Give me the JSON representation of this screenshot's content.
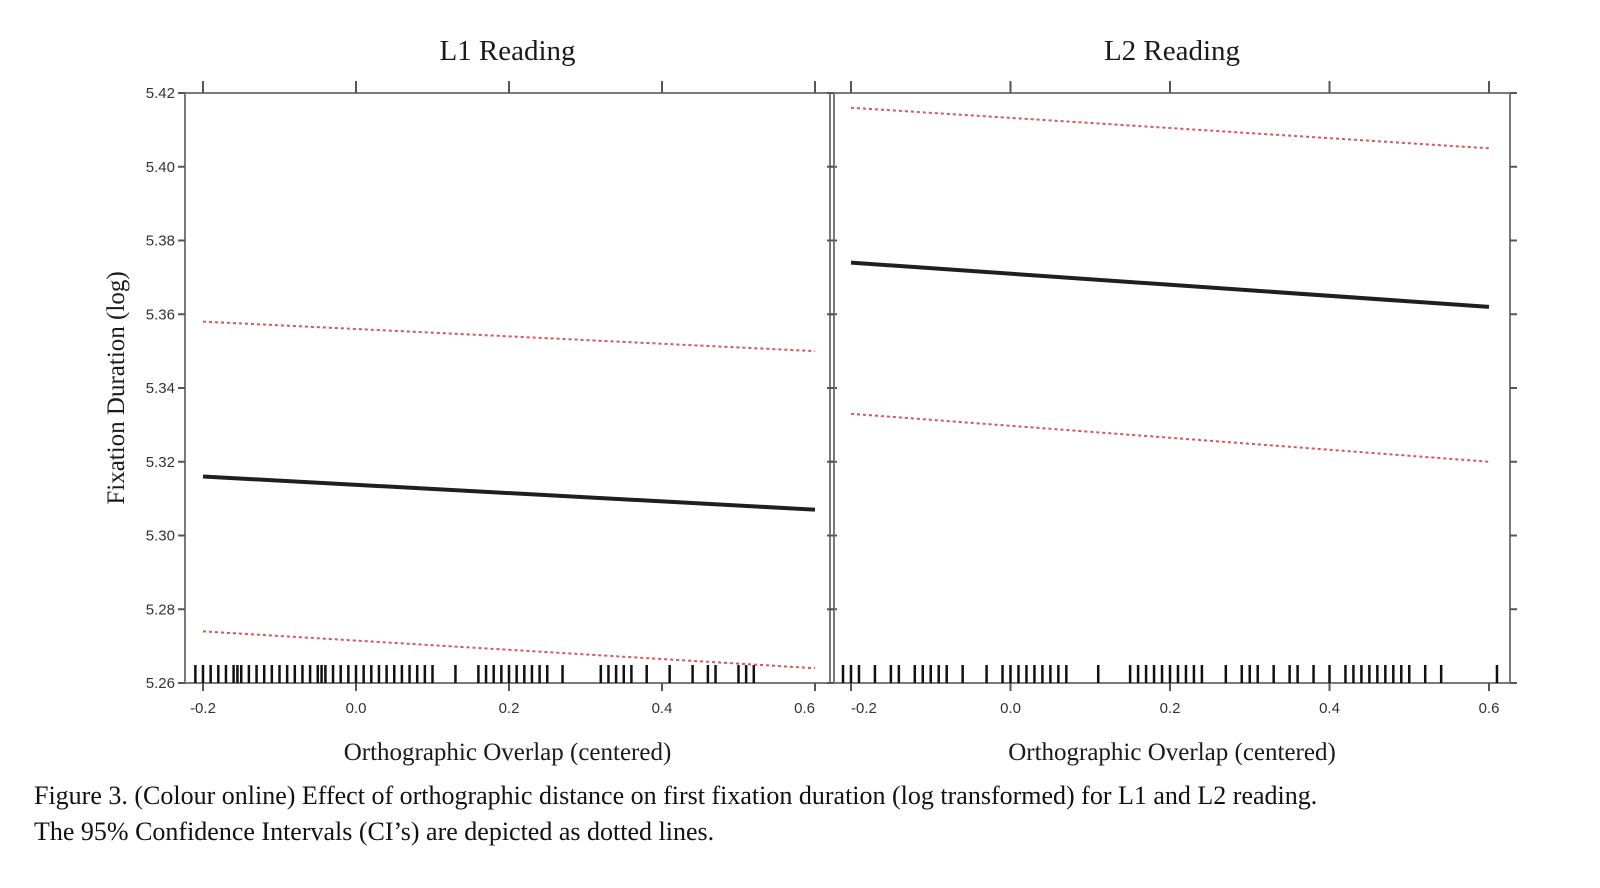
{
  "chart_data": [
    {
      "type": "line",
      "title": "L1 Reading",
      "xlabel": "Orthographic Overlap (centered)",
      "ylabel": "Fixation Duration (log)",
      "xlim": [
        -0.2,
        0.6
      ],
      "ylim": [
        5.26,
        5.42
      ],
      "x_ticks": [
        "-0.2",
        "0.0",
        "0.2",
        "0.4",
        "0.6"
      ],
      "y_ticks": [
        "5.26",
        "5.28",
        "5.30",
        "5.32",
        "5.34",
        "5.36",
        "5.38",
        "5.40",
        "5.42"
      ],
      "series": [
        {
          "role": "fit",
          "x": [
            -0.2,
            0.6
          ],
          "y": [
            5.316,
            5.307
          ]
        },
        {
          "role": "ci-upper",
          "x": [
            -0.2,
            0.6
          ],
          "y": [
            5.358,
            5.35
          ]
        },
        {
          "role": "ci-lower",
          "x": [
            -0.2,
            0.6
          ],
          "y": [
            5.274,
            5.264
          ]
        }
      ],
      "rug_x": [
        -0.21,
        -0.2,
        -0.19,
        -0.18,
        -0.17,
        -0.16,
        -0.155,
        -0.15,
        -0.14,
        -0.13,
        -0.12,
        -0.11,
        -0.1,
        -0.09,
        -0.08,
        -0.07,
        -0.06,
        -0.05,
        -0.045,
        -0.04,
        -0.03,
        -0.02,
        -0.01,
        0.0,
        0.01,
        0.02,
        0.03,
        0.04,
        0.05,
        0.06,
        0.07,
        0.08,
        0.09,
        0.1,
        0.13,
        0.16,
        0.17,
        0.18,
        0.19,
        0.2,
        0.21,
        0.22,
        0.23,
        0.24,
        0.25,
        0.27,
        0.32,
        0.33,
        0.34,
        0.35,
        0.36,
        0.38,
        0.41,
        0.44,
        0.46,
        0.47,
        0.5,
        0.51,
        0.52
      ]
    },
    {
      "type": "line",
      "title": "L2 Reading",
      "xlabel": "Orthographic Overlap (centered)",
      "ylabel": "",
      "xlim": [
        -0.2,
        0.6
      ],
      "ylim": [
        5.26,
        5.42
      ],
      "x_ticks": [
        "-0.2",
        "0.0",
        "0.2",
        "0.4",
        "0.6"
      ],
      "series": [
        {
          "role": "fit",
          "x": [
            -0.2,
            0.6
          ],
          "y": [
            5.374,
            5.362
          ]
        },
        {
          "role": "ci-upper",
          "x": [
            -0.2,
            0.6
          ],
          "y": [
            5.416,
            5.405
          ]
        },
        {
          "role": "ci-lower",
          "x": [
            -0.2,
            0.6
          ],
          "y": [
            5.333,
            5.32
          ]
        }
      ],
      "rug_x": [
        -0.21,
        -0.2,
        -0.19,
        -0.17,
        -0.15,
        -0.14,
        -0.12,
        -0.11,
        -0.1,
        -0.09,
        -0.08,
        -0.06,
        -0.03,
        -0.01,
        0.0,
        0.01,
        0.02,
        0.03,
        0.04,
        0.05,
        0.06,
        0.07,
        0.11,
        0.15,
        0.16,
        0.17,
        0.18,
        0.19,
        0.2,
        0.21,
        0.22,
        0.23,
        0.24,
        0.27,
        0.29,
        0.3,
        0.31,
        0.33,
        0.35,
        0.36,
        0.38,
        0.4,
        0.42,
        0.43,
        0.44,
        0.45,
        0.46,
        0.47,
        0.48,
        0.49,
        0.5,
        0.52,
        0.54,
        0.61
      ]
    }
  ],
  "caption": {
    "line1": "Figure 3.  (Colour online) Effect of orthographic distance on first fixation duration (log transformed) for L1 and L2 reading.",
    "line2": "The 95% Confidence Intervals (CI’s) are depicted as dotted lines."
  }
}
